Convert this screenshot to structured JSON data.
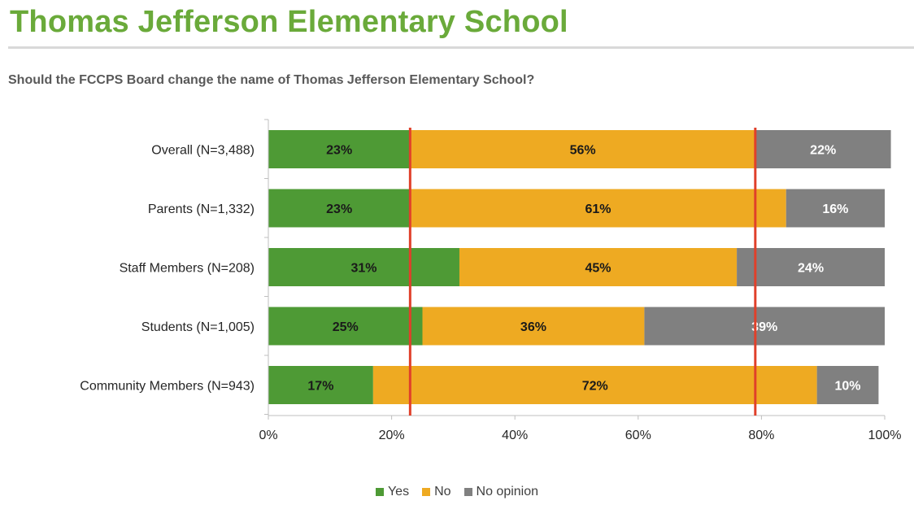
{
  "header": {
    "title": "Thomas Jefferson Elementary School",
    "question": "Should the FCCPS Board change the name of Thomas Jefferson Elementary School?"
  },
  "colors": {
    "title": "#6aaa3a",
    "Yes": "#4e9a35",
    "No": "#eeaa22",
    "No opinion": "#808080",
    "reference_lines": "#e0402a"
  },
  "chart_data": {
    "type": "bar",
    "orientation": "horizontal",
    "stacked": true,
    "categories": [
      "Overall (N=3,488)",
      "Parents (N=1,332)",
      "Staff Members (N=208)",
      "Students (N=1,005)",
      "Community Members (N=943)"
    ],
    "series": [
      {
        "name": "Yes",
        "values": [
          23,
          23,
          31,
          25,
          17
        ],
        "labels": [
          "23%",
          "23%",
          "31%",
          "25%",
          "17%"
        ]
      },
      {
        "name": "No",
        "values": [
          56,
          61,
          45,
          36,
          72
        ],
        "labels": [
          "56%",
          "61%",
          "45%",
          "36%",
          "72%"
        ]
      },
      {
        "name": "No opinion",
        "values": [
          22,
          16,
          24,
          39,
          10
        ],
        "labels": [
          "22%",
          "16%",
          "24%",
          "39%",
          "10%"
        ]
      }
    ],
    "xlim": [
      0,
      100
    ],
    "xticks": [
      "0%",
      "20%",
      "40%",
      "60%",
      "80%",
      "100%"
    ],
    "reference_lines": [
      23,
      79
    ],
    "grid": false,
    "legend_position": "bottom"
  }
}
